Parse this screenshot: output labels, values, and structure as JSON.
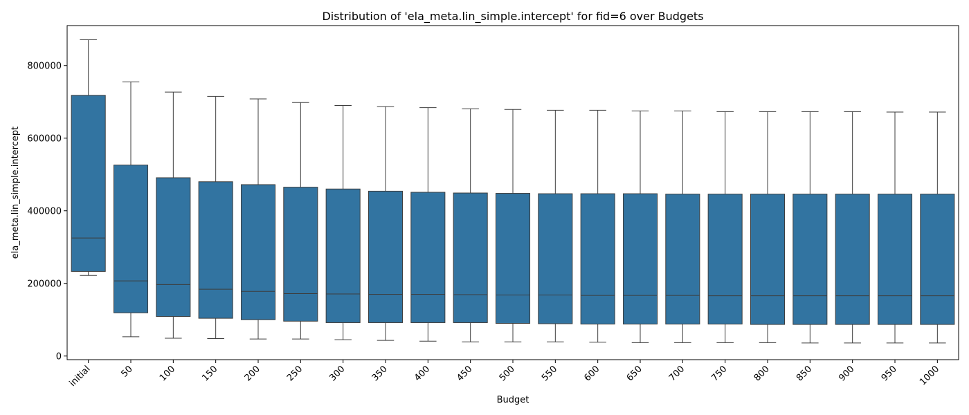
{
  "chart_data": {
    "type": "box",
    "title": "Distribution of 'ela_meta.lin_simple.intercept' for fid=6 over Budgets",
    "xlabel": "Budget",
    "ylabel": "ela_meta.lin_simple.intercept",
    "ylim": [
      -10000,
      910000
    ],
    "yticks": [
      0,
      200000,
      400000,
      600000,
      800000
    ],
    "grid": false,
    "box_color": "#3274a1",
    "categories": [
      "initial",
      "50",
      "100",
      "150",
      "200",
      "250",
      "300",
      "350",
      "400",
      "450",
      "500",
      "550",
      "600",
      "650",
      "700",
      "750",
      "800",
      "850",
      "900",
      "950",
      "1000"
    ],
    "boxes": [
      {
        "whislo": 222000,
        "q1": 233000,
        "med": 325000,
        "q3": 718000,
        "whishi": 871000
      },
      {
        "whislo": 53000,
        "q1": 119000,
        "med": 207000,
        "q3": 526000,
        "whishi": 755000
      },
      {
        "whislo": 49000,
        "q1": 109000,
        "med": 197000,
        "q3": 491000,
        "whishi": 727000
      },
      {
        "whislo": 48000,
        "q1": 104000,
        "med": 184000,
        "q3": 480000,
        "whishi": 715000
      },
      {
        "whislo": 47000,
        "q1": 100000,
        "med": 178000,
        "q3": 472000,
        "whishi": 708000
      },
      {
        "whislo": 47000,
        "q1": 96000,
        "med": 172000,
        "q3": 465000,
        "whishi": 698000
      },
      {
        "whislo": 45000,
        "q1": 92000,
        "med": 171000,
        "q3": 460000,
        "whishi": 690000
      },
      {
        "whislo": 43000,
        "q1": 92000,
        "med": 170000,
        "q3": 454000,
        "whishi": 687000
      },
      {
        "whislo": 41000,
        "q1": 92000,
        "med": 170000,
        "q3": 451000,
        "whishi": 684000
      },
      {
        "whislo": 39000,
        "q1": 92000,
        "med": 169000,
        "q3": 449000,
        "whishi": 681000
      },
      {
        "whislo": 39000,
        "q1": 90000,
        "med": 168000,
        "q3": 448000,
        "whishi": 679000
      },
      {
        "whislo": 39000,
        "q1": 89000,
        "med": 168000,
        "q3": 447000,
        "whishi": 677000
      },
      {
        "whislo": 38000,
        "q1": 88000,
        "med": 167000,
        "q3": 447000,
        "whishi": 677000
      },
      {
        "whislo": 37000,
        "q1": 88000,
        "med": 167000,
        "q3": 447000,
        "whishi": 675000
      },
      {
        "whislo": 37000,
        "q1": 88000,
        "med": 167000,
        "q3": 446000,
        "whishi": 675000
      },
      {
        "whislo": 37000,
        "q1": 88000,
        "med": 166000,
        "q3": 446000,
        "whishi": 673000
      },
      {
        "whislo": 37000,
        "q1": 87000,
        "med": 166000,
        "q3": 446000,
        "whishi": 673000
      },
      {
        "whislo": 36000,
        "q1": 87000,
        "med": 166000,
        "q3": 446000,
        "whishi": 673000
      },
      {
        "whislo": 36000,
        "q1": 87000,
        "med": 166000,
        "q3": 446000,
        "whishi": 673000
      },
      {
        "whislo": 36000,
        "q1": 87000,
        "med": 166000,
        "q3": 446000,
        "whishi": 672000
      },
      {
        "whislo": 36000,
        "q1": 87000,
        "med": 166000,
        "q3": 446000,
        "whishi": 672000
      }
    ]
  }
}
